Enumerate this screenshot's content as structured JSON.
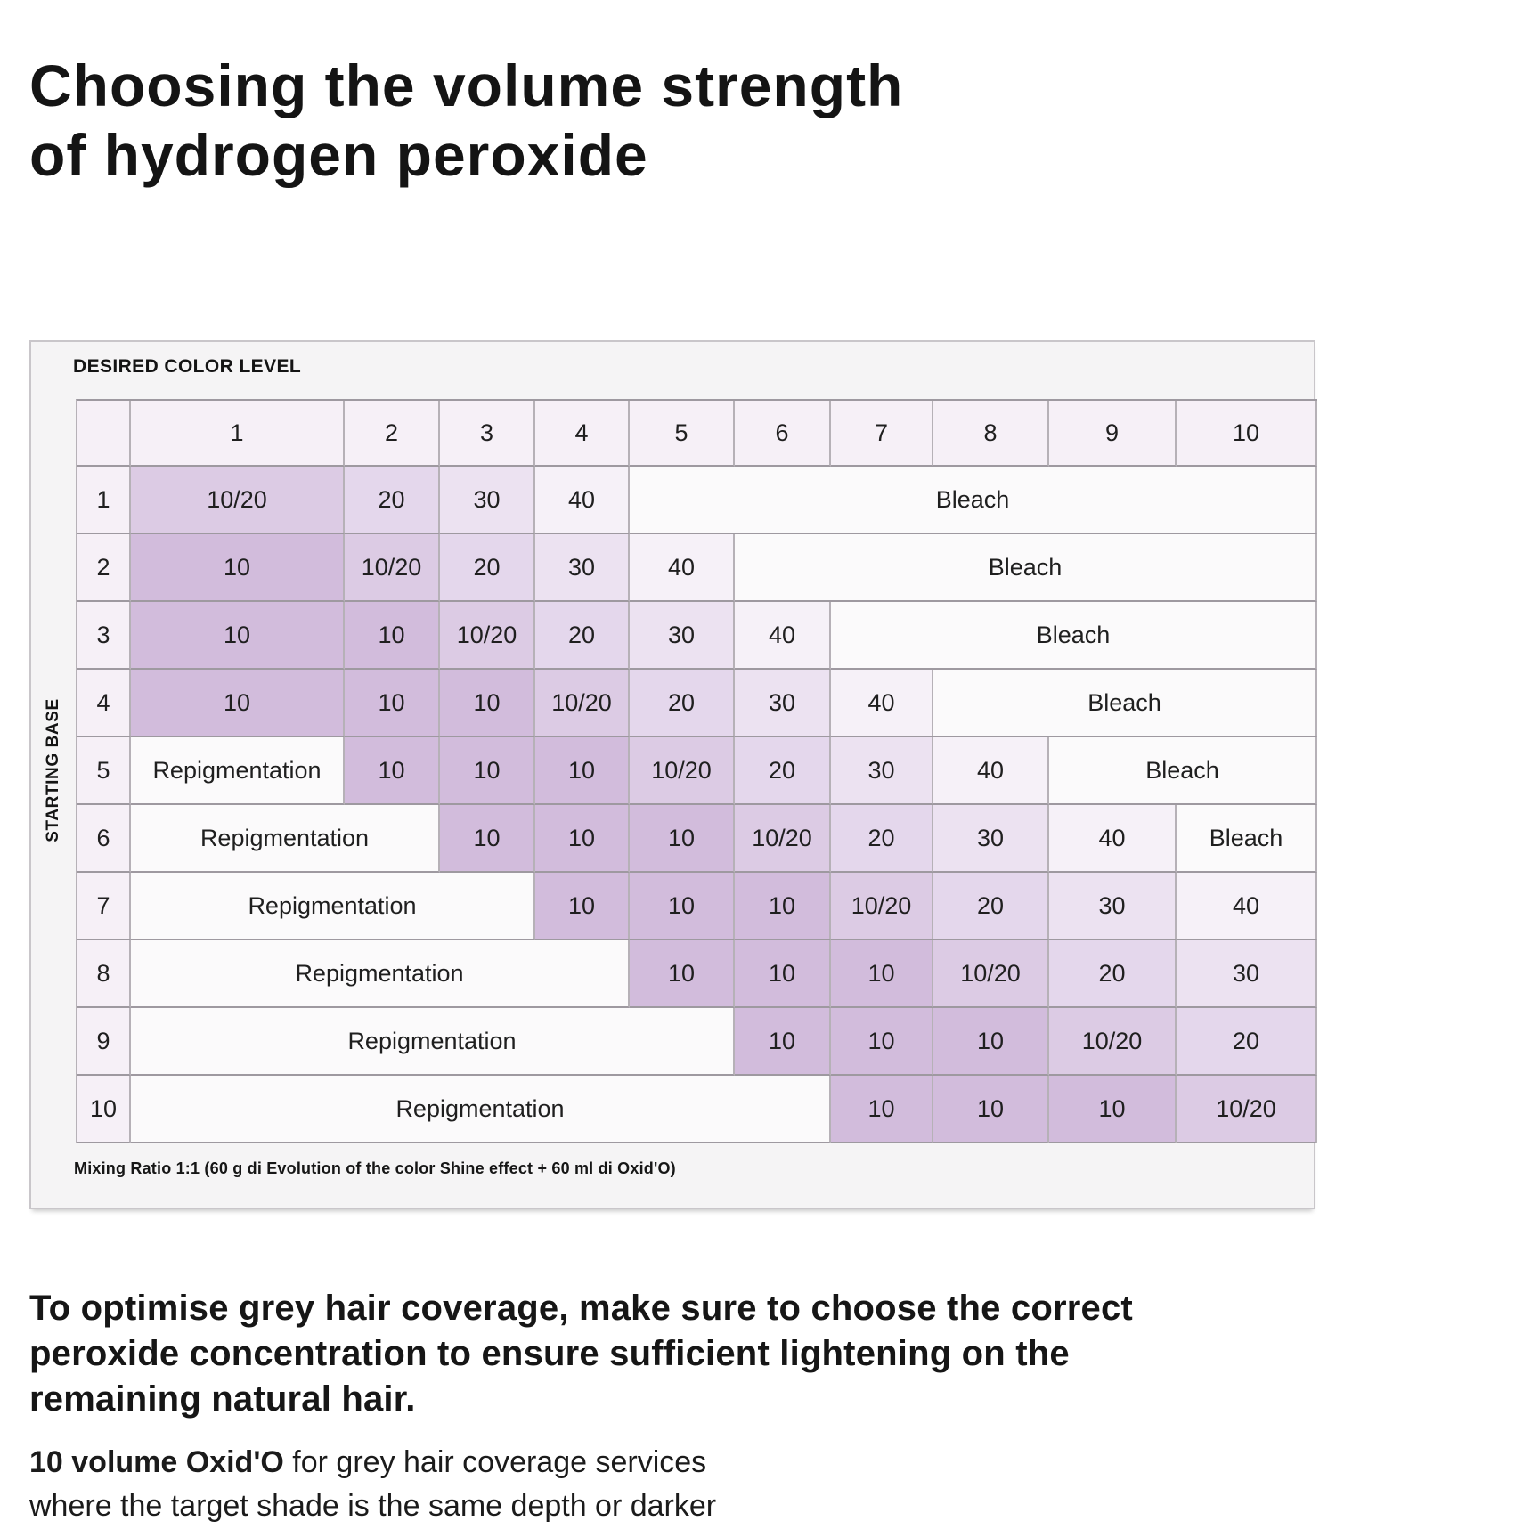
{
  "page": {
    "title": "Choosing the volume strength\nof hydrogen peroxide"
  },
  "table": {
    "corner_label": "DESIRED COLOR LEVEL",
    "side_label": "STARTING BASE",
    "footnote": "Mixing Ratio 1:1 (60 g di Evolution of the color Shine effect + 60 ml di Oxid'O)",
    "column_headers": [
      "1",
      "2",
      "3",
      "4",
      "5",
      "6",
      "7",
      "8",
      "9",
      "10"
    ],
    "rows": [
      {
        "label": "1",
        "cells": [
          {
            "text": "10/20",
            "span": 1,
            "type": "v1020"
          },
          {
            "text": "20",
            "span": 1,
            "type": "v20"
          },
          {
            "text": "30",
            "span": 1,
            "type": "v30"
          },
          {
            "text": "40",
            "span": 1,
            "type": "v40"
          },
          {
            "text": "Bleach",
            "span": 6,
            "type": "bleach"
          }
        ]
      },
      {
        "label": "2",
        "cells": [
          {
            "text": "10",
            "span": 1,
            "type": "v10"
          },
          {
            "text": "10/20",
            "span": 1,
            "type": "v1020"
          },
          {
            "text": "20",
            "span": 1,
            "type": "v20"
          },
          {
            "text": "30",
            "span": 1,
            "type": "v30"
          },
          {
            "text": "40",
            "span": 1,
            "type": "v40"
          },
          {
            "text": "Bleach",
            "span": 5,
            "type": "bleach"
          }
        ]
      },
      {
        "label": "3",
        "cells": [
          {
            "text": "10",
            "span": 1,
            "type": "v10"
          },
          {
            "text": "10",
            "span": 1,
            "type": "v10"
          },
          {
            "text": "10/20",
            "span": 1,
            "type": "v1020"
          },
          {
            "text": "20",
            "span": 1,
            "type": "v20"
          },
          {
            "text": "30",
            "span": 1,
            "type": "v30"
          },
          {
            "text": "40",
            "span": 1,
            "type": "v40"
          },
          {
            "text": "Bleach",
            "span": 4,
            "type": "bleach"
          }
        ]
      },
      {
        "label": "4",
        "cells": [
          {
            "text": "10",
            "span": 1,
            "type": "v10"
          },
          {
            "text": "10",
            "span": 1,
            "type": "v10"
          },
          {
            "text": "10",
            "span": 1,
            "type": "v10"
          },
          {
            "text": "10/20",
            "span": 1,
            "type": "v1020"
          },
          {
            "text": "20",
            "span": 1,
            "type": "v20"
          },
          {
            "text": "30",
            "span": 1,
            "type": "v30"
          },
          {
            "text": "40",
            "span": 1,
            "type": "v40"
          },
          {
            "text": "Bleach",
            "span": 3,
            "type": "bleach"
          }
        ]
      },
      {
        "label": "5",
        "cells": [
          {
            "text": "Repigmentation",
            "span": 1,
            "type": "repig"
          },
          {
            "text": "10",
            "span": 1,
            "type": "v10"
          },
          {
            "text": "10",
            "span": 1,
            "type": "v10"
          },
          {
            "text": "10",
            "span": 1,
            "type": "v10"
          },
          {
            "text": "10/20",
            "span": 1,
            "type": "v1020"
          },
          {
            "text": "20",
            "span": 1,
            "type": "v20"
          },
          {
            "text": "30",
            "span": 1,
            "type": "v30"
          },
          {
            "text": "40",
            "span": 1,
            "type": "v40"
          },
          {
            "text": "Bleach",
            "span": 2,
            "type": "bleach"
          }
        ]
      },
      {
        "label": "6",
        "cells": [
          {
            "text": "Repigmentation",
            "span": 2,
            "type": "repig"
          },
          {
            "text": "10",
            "span": 1,
            "type": "v10"
          },
          {
            "text": "10",
            "span": 1,
            "type": "v10"
          },
          {
            "text": "10",
            "span": 1,
            "type": "v10"
          },
          {
            "text": "10/20",
            "span": 1,
            "type": "v1020"
          },
          {
            "text": "20",
            "span": 1,
            "type": "v20"
          },
          {
            "text": "30",
            "span": 1,
            "type": "v30"
          },
          {
            "text": "40",
            "span": 1,
            "type": "v40"
          },
          {
            "text": "Bleach",
            "span": 1,
            "type": "bleach"
          }
        ]
      },
      {
        "label": "7",
        "cells": [
          {
            "text": "Repigmentation",
            "span": 3,
            "type": "repig"
          },
          {
            "text": "10",
            "span": 1,
            "type": "v10"
          },
          {
            "text": "10",
            "span": 1,
            "type": "v10"
          },
          {
            "text": "10",
            "span": 1,
            "type": "v10"
          },
          {
            "text": "10/20",
            "span": 1,
            "type": "v1020"
          },
          {
            "text": "20",
            "span": 1,
            "type": "v20"
          },
          {
            "text": "30",
            "span": 1,
            "type": "v30"
          },
          {
            "text": "40",
            "span": 1,
            "type": "v40"
          }
        ]
      },
      {
        "label": "8",
        "cells": [
          {
            "text": "Repigmentation",
            "span": 4,
            "type": "repig"
          },
          {
            "text": "10",
            "span": 1,
            "type": "v10"
          },
          {
            "text": "10",
            "span": 1,
            "type": "v10"
          },
          {
            "text": "10",
            "span": 1,
            "type": "v10"
          },
          {
            "text": "10/20",
            "span": 1,
            "type": "v1020"
          },
          {
            "text": "20",
            "span": 1,
            "type": "v20"
          },
          {
            "text": "30",
            "span": 1,
            "type": "v30"
          }
        ]
      },
      {
        "label": "9",
        "cells": [
          {
            "text": "Repigmentation",
            "span": 5,
            "type": "repig"
          },
          {
            "text": "10",
            "span": 1,
            "type": "v10"
          },
          {
            "text": "10",
            "span": 1,
            "type": "v10"
          },
          {
            "text": "10",
            "span": 1,
            "type": "v10"
          },
          {
            "text": "10/20",
            "span": 1,
            "type": "v1020"
          },
          {
            "text": "20",
            "span": 1,
            "type": "v20"
          }
        ]
      },
      {
        "label": "10",
        "cells": [
          {
            "text": "Repigmentation",
            "span": 6,
            "type": "repig"
          },
          {
            "text": "10",
            "span": 1,
            "type": "v10"
          },
          {
            "text": "10",
            "span": 1,
            "type": "v10"
          },
          {
            "text": "10",
            "span": 1,
            "type": "v10"
          },
          {
            "text": "10/20",
            "span": 1,
            "type": "v1020"
          }
        ]
      }
    ]
  },
  "notes": {
    "emphasis": "To optimise grey hair coverage, make sure to choose the correct\nperoxide concentration to ensure sufficient lightening on the\nremaining natural hair.",
    "detail_lead": "10 volume Oxid'O",
    "detail_rest": " for grey hair coverage services\nwhere the target shade is the same depth or darker"
  },
  "colors": {
    "v10": "#d2bcdc",
    "v1020": "#dccbe4",
    "v20": "#e4d7ec",
    "v30": "#ece2f1",
    "v40": "#f6f1f8",
    "bleach": "#fbfafb",
    "repig": "#fbfafb",
    "hdr": "#f6f0f7",
    "tableBg": "#f5f4f5",
    "gridV": "#b6b1b7",
    "gridH": "#9e99a0",
    "text": "#1c1c1c"
  }
}
